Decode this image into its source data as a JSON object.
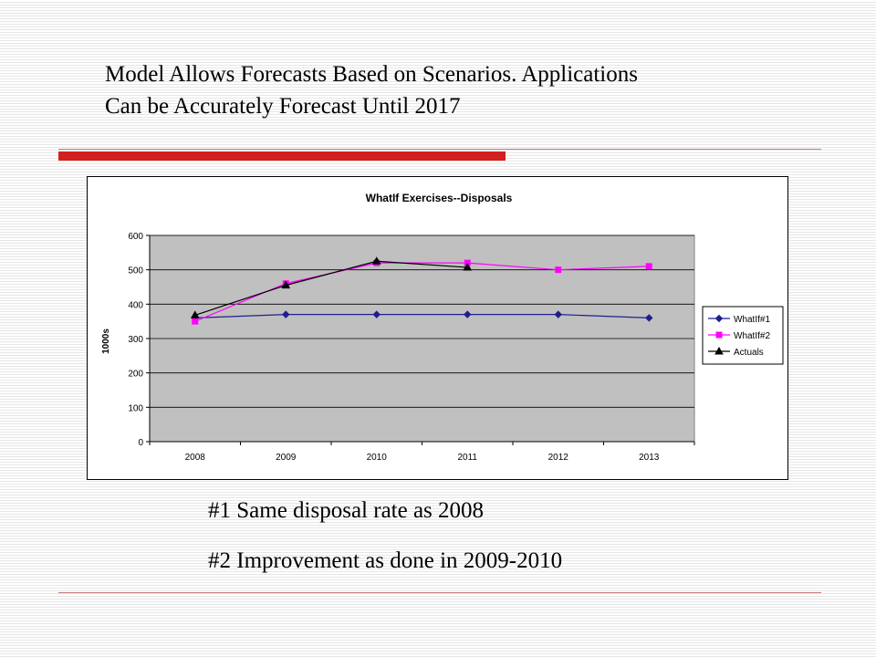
{
  "slide": {
    "title_line1": "Model Allows Forecasts Based on Scenarios.  Applications",
    "title_line2": "Can be Accurately Forecast Until 2017",
    "note1": "#1 Same disposal rate as 2008",
    "note2": "#2 Improvement as done in 2009-2010"
  },
  "colors": {
    "accent_bar": "#d41f1f",
    "plot_area": "#c0c0c0"
  },
  "chart_data": {
    "type": "line",
    "title": "WhatIf Exercises--Disposals",
    "ylabel": "1000s",
    "xlabel": "",
    "categories": [
      "2008",
      "2009",
      "2010",
      "2011",
      "2012",
      "2013"
    ],
    "ylim": [
      0,
      600
    ],
    "yticks": [
      "0",
      "100",
      "200",
      "300",
      "400",
      "500",
      "600"
    ],
    "grid": "horizontal",
    "legend": "right",
    "series": [
      {
        "name": "WhatIf#1",
        "color": "#1f1f8f",
        "marker": "diamond",
        "values": [
          360,
          370,
          370,
          370,
          370,
          360
        ]
      },
      {
        "name": "WhatIf#2",
        "color": "#ff00ff",
        "marker": "square",
        "values": [
          350,
          460,
          520,
          520,
          500,
          510
        ]
      },
      {
        "name": "Actuals",
        "color": "#000000",
        "marker": "triangle",
        "values": [
          368,
          455,
          525,
          507,
          null,
          null
        ]
      }
    ]
  }
}
